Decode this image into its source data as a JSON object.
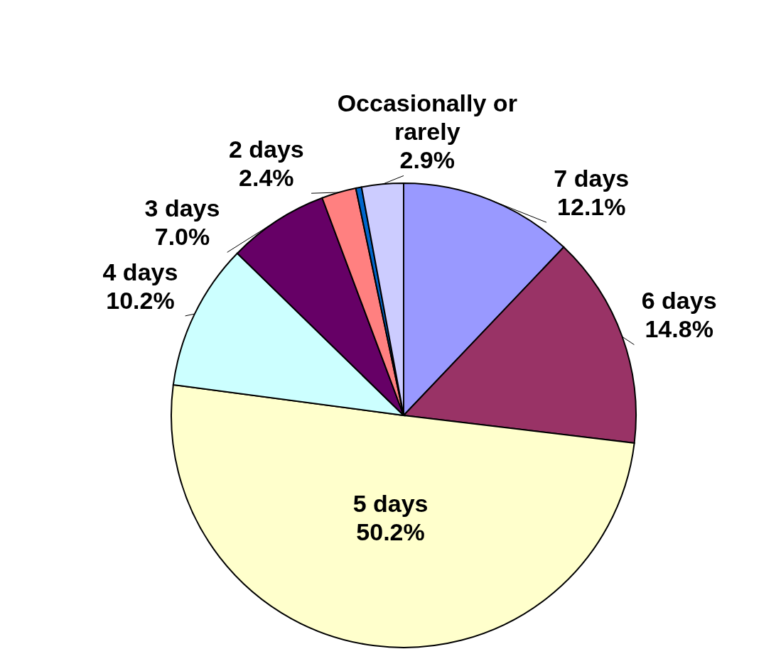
{
  "chart_data": {
    "type": "pie",
    "categories": [
      "7 days",
      "6 days",
      "5 days",
      "4 days",
      "3 days",
      "2 days",
      null,
      "Occasionally or rarely"
    ],
    "values": [
      12.1,
      14.8,
      50.2,
      10.2,
      7.0,
      2.4,
      0.4,
      2.9
    ],
    "value_labels": [
      "12.1%",
      "14.8%",
      "50.2%",
      "10.2%",
      "7.0%",
      "2.4%",
      null,
      "2.9%"
    ],
    "colors": [
      "#9999ff",
      "#993366",
      "#ffffcc",
      "#ccffff",
      "#660066",
      "#ff8080",
      "#0066cc",
      "#ccccff"
    ]
  }
}
